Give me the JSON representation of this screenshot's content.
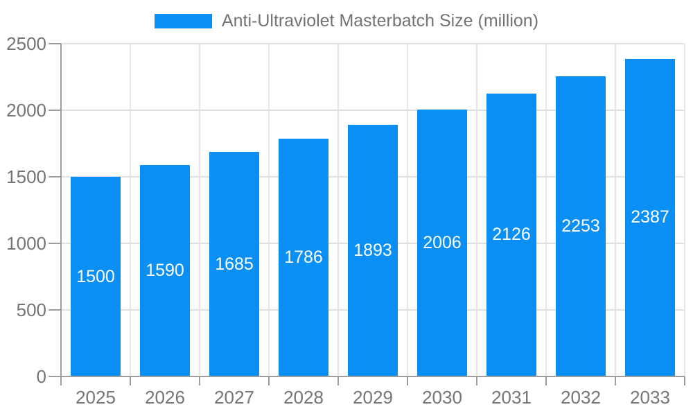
{
  "legend": {
    "label": "Anti-Ultraviolet Masterbatch Size (million)"
  },
  "chart_data": {
    "type": "bar",
    "title": "Anti-Ultraviolet Masterbatch Size (million)",
    "series_name": "Anti-Ultraviolet Masterbatch Size (million)",
    "categories": [
      "2025",
      "2026",
      "2027",
      "2028",
      "2029",
      "2030",
      "2031",
      "2032",
      "2033"
    ],
    "values": [
      1500,
      1590,
      1685,
      1786,
      1893,
      2006,
      2126,
      2253,
      2387
    ],
    "xlabel": "",
    "ylabel": "",
    "ylim": [
      0,
      2500
    ],
    "yticks": [
      0,
      500,
      1000,
      1500,
      2000,
      2500
    ],
    "grid": true,
    "legend_position": "top",
    "value_labels": "inside-center",
    "colors": {
      "bar": "#0a90f5",
      "bar_value_text": "#ffffff",
      "grid_h": "#e0e0e0",
      "grid_v": "#e6e6e6",
      "axis_line": "#9e9e9e",
      "axis_text": "#757575",
      "legend_text": "#737373",
      "background": "#ffffff"
    }
  }
}
